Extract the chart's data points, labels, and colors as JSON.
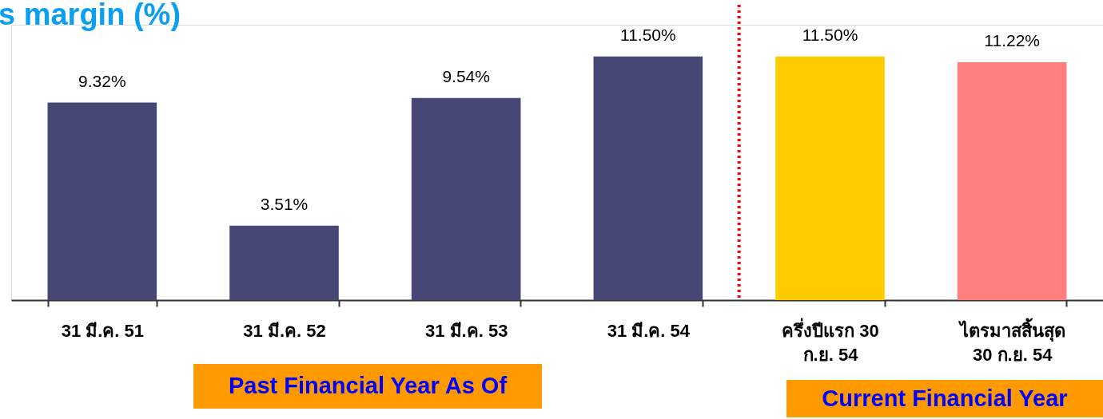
{
  "chart_data": {
    "type": "bar",
    "title": "s margin (%)",
    "categories": [
      "31 มี.ค. 51",
      "31 มี.ค. 52",
      "31 มี.ค. 53",
      "31 มี.ค. 54",
      "ครึ่งปีแรก 30\nก.ย. 54",
      "ไตรมาสสิ้นสุด\n30 ก.ย. 54"
    ],
    "values": [
      9.32,
      3.51,
      9.54,
      11.5,
      11.5,
      11.22
    ],
    "value_labels": [
      "9.32%",
      "3.51%",
      "9.54%",
      "11.50%",
      "11.50%",
      "11.22%"
    ],
    "colors": [
      "#464775",
      "#464775",
      "#464775",
      "#464775",
      "#ffcc00",
      "#ff7f7f"
    ],
    "ref_lines": [
      {
        "axis": "x",
        "value": "ครึ่งปีแรก 30\nก.ย. 54",
        "color": "#ff0000",
        "line_style": "dotted"
      }
    ],
    "annotations": [
      "Past Financial Year As Of",
      "Current Financial Year"
    ]
  }
}
